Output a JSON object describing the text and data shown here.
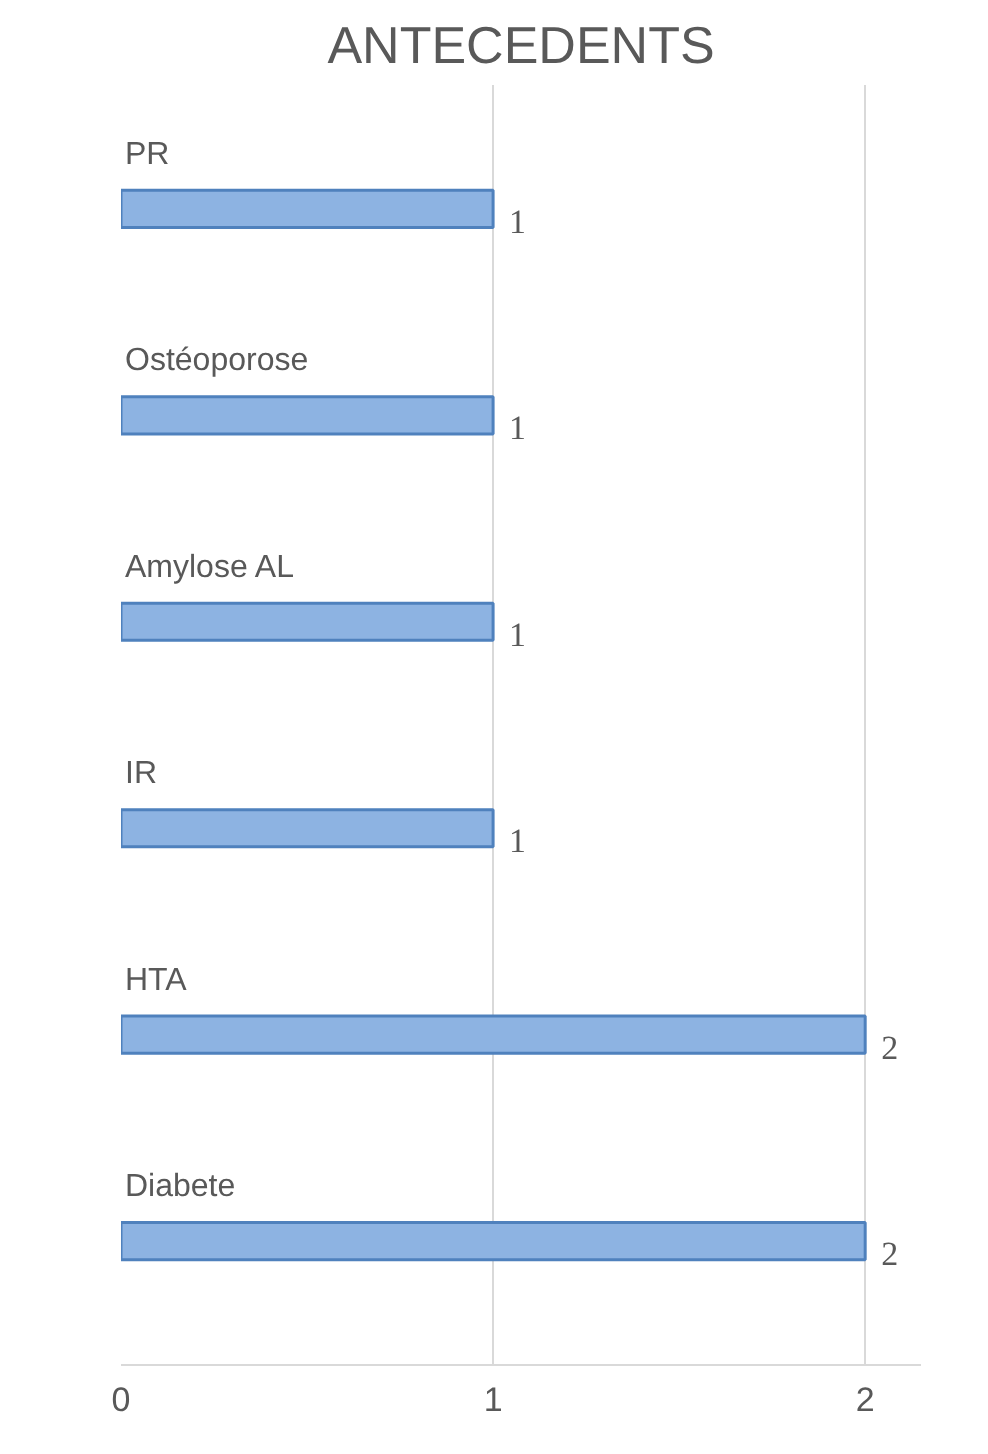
{
  "chart_data": {
    "type": "bar",
    "title": "ANTECEDENTS",
    "orientation": "horizontal",
    "categories": [
      "PR",
      "Ostéoporose",
      "Amylose AL",
      "IR",
      "HTA",
      "Diabete"
    ],
    "values": [
      1,
      1,
      1,
      1,
      2,
      2
    ],
    "color": "#8db3e2",
    "xlim": [
      0,
      2.15
    ],
    "xticks": [
      0,
      1,
      2
    ],
    "grid": "x",
    "data_labels": true
  }
}
